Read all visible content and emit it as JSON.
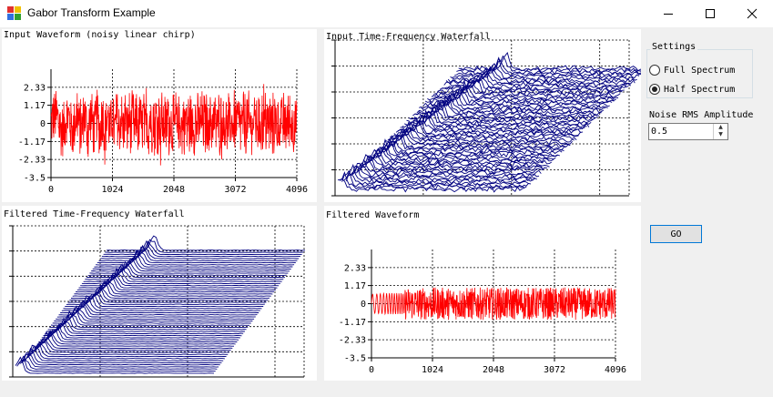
{
  "window": {
    "title": "Gabor Transform Example",
    "icon": "app-colored-squares-icon",
    "controls": [
      "minimize-icon",
      "maximize-icon",
      "close-icon"
    ]
  },
  "panels": {
    "input_waveform": {
      "title": "Input Waveform (noisy linear chirp)"
    },
    "input_waterfall": {
      "title": "Input Time-Frequency Waterfall"
    },
    "filtered_waterfall": {
      "title": "Filtered Time-Frequency Waterfall"
    },
    "filtered_waveform": {
      "title": "Filtered Waveform"
    }
  },
  "settings": {
    "group_label": "Settings",
    "options": [
      {
        "label": "Full Spectrum",
        "selected": false
      },
      {
        "label": "Half Spectrum",
        "selected": true
      }
    ],
    "noise_label": "Noise RMS Amplitude",
    "noise_value": "0.5",
    "go_label": "GO"
  },
  "chart_data": [
    {
      "type": "line",
      "name": "input_waveform",
      "description_series": "noisy linear chirp",
      "x_ticks": [
        "0",
        "1024",
        "2048",
        "3072",
        "4096"
      ],
      "y_ticks": [
        "2.33",
        "1.17",
        "0",
        "-1.17",
        "-2.33",
        "-3.5"
      ],
      "xlim": [
        0,
        4096
      ],
      "ylim": [
        -3.5,
        3.5
      ],
      "color": "#ff0000",
      "grid": true
    },
    {
      "type": "line",
      "name": "filtered_waveform",
      "x_ticks": [
        "0",
        "1024",
        "2048",
        "3072",
        "4096"
      ],
      "y_ticks": [
        "2.33",
        "1.17",
        "0",
        "-1.17",
        "-2.33",
        "-3.5"
      ],
      "xlim": [
        0,
        4096
      ],
      "ylim": [
        -3.5,
        3.5
      ],
      "color": "#ff0000",
      "grid": true
    },
    {
      "type": "area",
      "name": "input_waterfall",
      "color": "#000080",
      "grid": true
    },
    {
      "type": "area",
      "name": "filtered_waterfall",
      "color": "#000080",
      "grid": true
    }
  ]
}
